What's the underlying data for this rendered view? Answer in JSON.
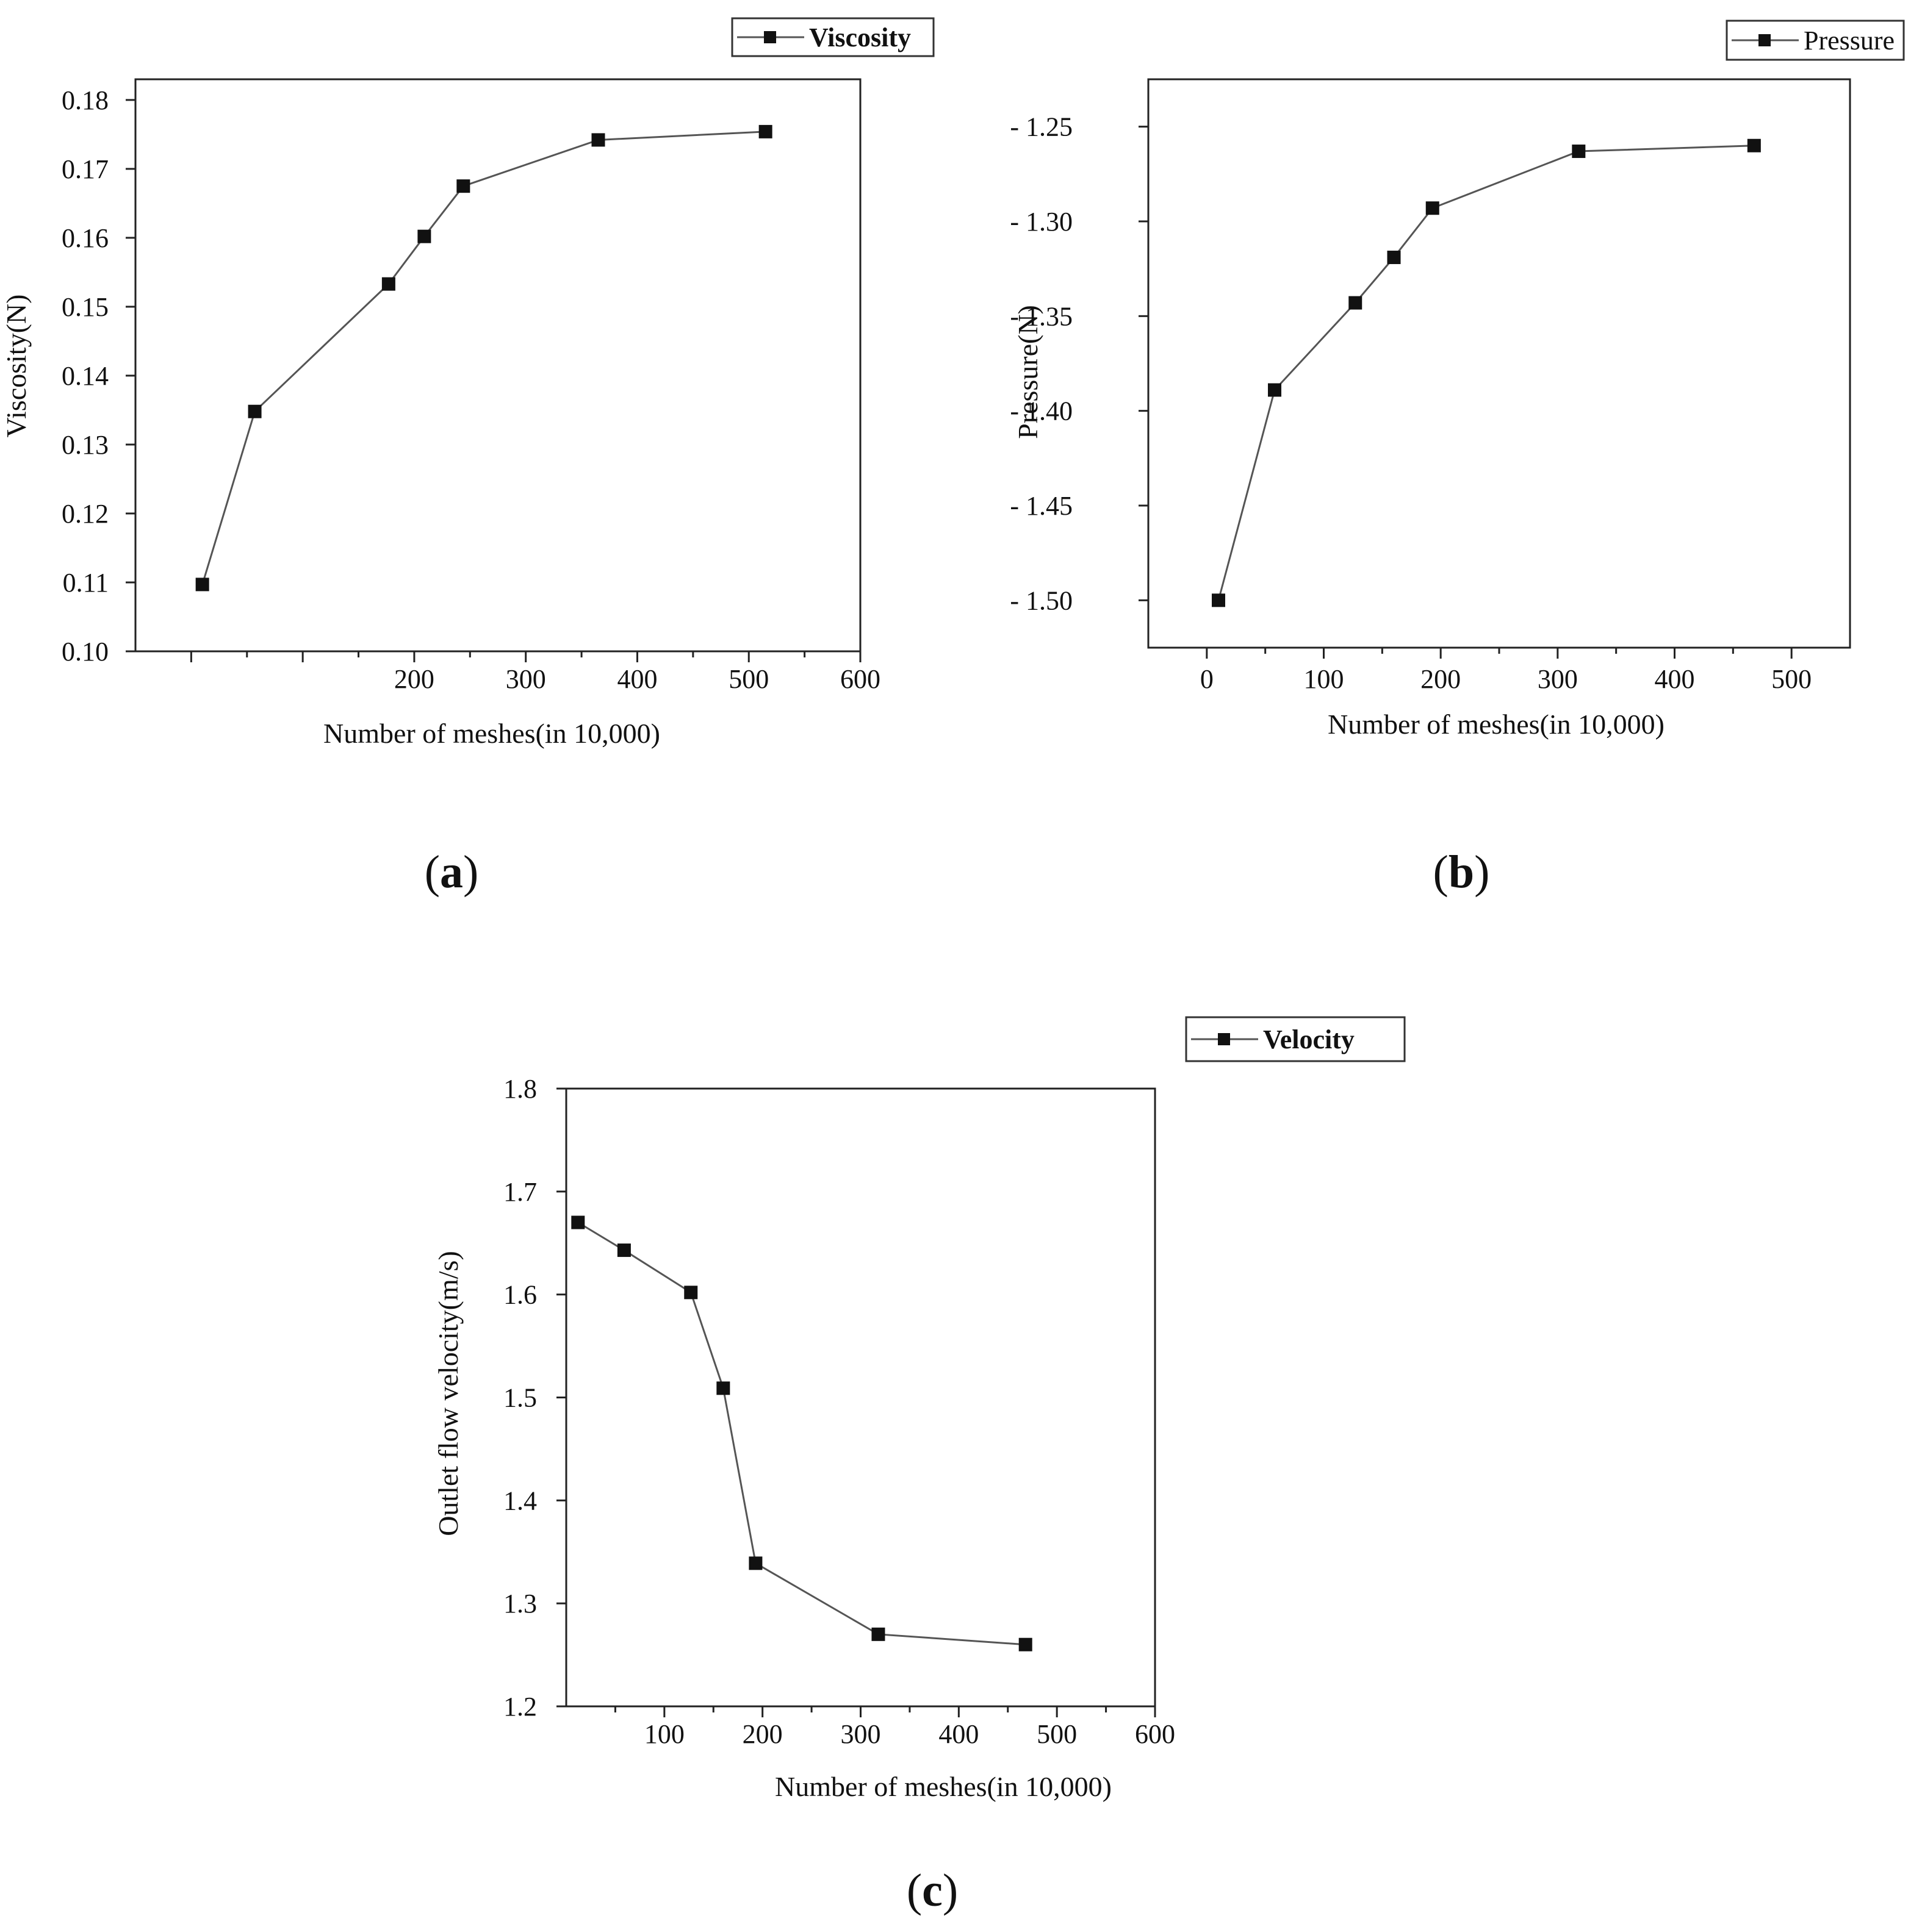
{
  "chart_data": [
    {
      "id": "a",
      "type": "line",
      "panel_label": "a",
      "title": "",
      "xlabel": "Number of meshes(in 10,000)",
      "ylabel": "Viscosity(N)",
      "legend": {
        "label": "Viscosity",
        "bold": true,
        "position": "top-right"
      },
      "xlim": [
        -50,
        600
      ],
      "ylim": [
        0.1,
        0.183
      ],
      "x_ticks": [
        {
          "value": 0,
          "label": ""
        },
        {
          "value": 100,
          "label": ""
        },
        {
          "value": 200,
          "label": "200"
        },
        {
          "value": 300,
          "label": "300"
        },
        {
          "value": 400,
          "label": "400"
        },
        {
          "value": 500,
          "label": "500"
        },
        {
          "value": 600,
          "label": "600"
        }
      ],
      "x_minor_ticks": [
        50,
        150,
        250,
        350,
        450,
        550
      ],
      "y_ticks": [
        {
          "value": 0.1,
          "label": "0.10"
        },
        {
          "value": 0.11,
          "label": "0.11"
        },
        {
          "value": 0.12,
          "label": "0.12"
        },
        {
          "value": 0.13,
          "label": "0.13"
        },
        {
          "value": 0.14,
          "label": "0.14"
        },
        {
          "value": 0.15,
          "label": "0.15"
        },
        {
          "value": 0.16,
          "label": "0.16"
        },
        {
          "value": 0.17,
          "label": "0.17"
        },
        {
          "value": 0.18,
          "label": "0.18"
        }
      ],
      "series": [
        {
          "name": "Viscosity",
          "x": [
            10,
            57,
            177,
            209,
            244,
            365,
            515
          ],
          "y": [
            0.1097,
            0.1348,
            0.1533,
            0.1602,
            0.1675,
            0.1742,
            0.1754
          ]
        }
      ]
    },
    {
      "id": "b",
      "type": "line",
      "panel_label": "b",
      "title": "",
      "xlabel": "Number of meshes(in 10,000)",
      "ylabel": "Pressure(N)",
      "legend": {
        "label": "Pressure",
        "bold": false,
        "position": "top-right"
      },
      "xlim": [
        -50,
        550
      ],
      "ylim": [
        -1.525,
        -1.225
      ],
      "x_ticks": [
        {
          "value": 0,
          "label": "0"
        },
        {
          "value": 100,
          "label": "100"
        },
        {
          "value": 200,
          "label": "200"
        },
        {
          "value": 300,
          "label": "300"
        },
        {
          "value": 400,
          "label": "400"
        },
        {
          "value": 500,
          "label": "500"
        }
      ],
      "x_minor_ticks": [
        50,
        150,
        250,
        350,
        450
      ],
      "y_ticks": [
        {
          "value": -1.25,
          "label": "- 1.25"
        },
        {
          "value": -1.3,
          "label": "- 1.30"
        },
        {
          "value": -1.35,
          "label": "- 1.35"
        },
        {
          "value": -1.4,
          "label": "- 1.40"
        },
        {
          "value": -1.45,
          "label": "- 1.45"
        },
        {
          "value": -1.5,
          "label": "- 1.50"
        }
      ],
      "series": [
        {
          "name": "Pressure",
          "x": [
            10,
            58,
            127,
            160,
            193,
            318,
            468
          ],
          "y": [
            -1.5,
            -1.389,
            -1.343,
            -1.319,
            -1.293,
            -1.263,
            -1.26
          ]
        }
      ]
    },
    {
      "id": "c",
      "type": "line",
      "panel_label": "c",
      "title": "",
      "xlabel": "Number of meshes(in 10,000)",
      "ylabel": "Outlet flow velocity(m/s)",
      "legend": {
        "label": "Velocity",
        "bold": true,
        "position": "top-right"
      },
      "xlim": [
        0,
        600
      ],
      "ylim": [
        1.2,
        1.8
      ],
      "x_ticks": [
        {
          "value": 100,
          "label": "100"
        },
        {
          "value": 200,
          "label": "200"
        },
        {
          "value": 300,
          "label": "300"
        },
        {
          "value": 400,
          "label": "400"
        },
        {
          "value": 500,
          "label": "500"
        },
        {
          "value": 600,
          "label": "600"
        }
      ],
      "x_minor_ticks": [
        50,
        150,
        250,
        350,
        450,
        550
      ],
      "y_ticks": [
        {
          "value": 1.2,
          "label": "1.2"
        },
        {
          "value": 1.3,
          "label": "1.3"
        },
        {
          "value": 1.4,
          "label": "1.4"
        },
        {
          "value": 1.5,
          "label": "1.5"
        },
        {
          "value": 1.6,
          "label": "1.6"
        },
        {
          "value": 1.7,
          "label": "1.7"
        },
        {
          "value": 1.8,
          "label": "1.8"
        }
      ],
      "series": [
        {
          "name": "Velocity",
          "x": [
            12,
            59,
            127,
            160,
            193,
            318,
            468
          ],
          "y": [
            1.67,
            1.643,
            1.602,
            1.509,
            1.339,
            1.27,
            1.26
          ]
        }
      ]
    }
  ]
}
